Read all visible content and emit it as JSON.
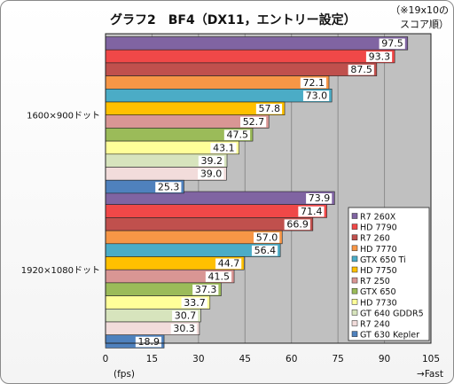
{
  "chart_data": {
    "type": "bar",
    "orientation": "horizontal",
    "title": "グラフ2　BF4（DX11，エントリー設定）",
    "note": [
      "（※19x10の",
      "スコア順）"
    ],
    "xlabel": "(fps)",
    "x_direction_label": "→Fast",
    "xlim": [
      0,
      105
    ],
    "xticks": [
      0,
      15,
      30,
      45,
      60,
      75,
      90,
      105
    ],
    "grid": true,
    "legend_position": "bottom-right, inside plot",
    "categories": [
      "1600×900ドット",
      "1920×1080ドット"
    ],
    "series": [
      {
        "name": "R7 260X",
        "color": "#8064a2",
        "values": [
          97.5,
          73.9
        ]
      },
      {
        "name": "HD 7790",
        "color": "#f04848",
        "values": [
          93.3,
          71.4
        ]
      },
      {
        "name": "R7 260",
        "color": "#c0504d",
        "values": [
          87.5,
          66.9
        ]
      },
      {
        "name": "HD 7770",
        "color": "#f79646",
        "values": [
          72.1,
          57.0
        ]
      },
      {
        "name": "GTX 650 Ti",
        "color": "#4bacc6",
        "values": [
          73.0,
          56.4
        ]
      },
      {
        "name": "HD 7750",
        "color": "#ffc000",
        "values": [
          57.8,
          44.7
        ]
      },
      {
        "name": "R7 250",
        "color": "#d99694",
        "values": [
          52.7,
          41.5
        ]
      },
      {
        "name": "GTX 650",
        "color": "#9bbb59",
        "values": [
          47.5,
          37.3
        ]
      },
      {
        "name": "HD 7730",
        "color": "#ffff99",
        "values": [
          43.1,
          33.7
        ]
      },
      {
        "name": "GT 640 GDDR5",
        "color": "#d7e4bd",
        "values": [
          39.2,
          30.7
        ]
      },
      {
        "name": "R7 240",
        "color": "#f2dcdb",
        "values": [
          39.0,
          30.3
        ]
      },
      {
        "name": "GT 630 Kepler",
        "color": "#4f81bd",
        "values": [
          25.3,
          18.9
        ]
      }
    ]
  }
}
